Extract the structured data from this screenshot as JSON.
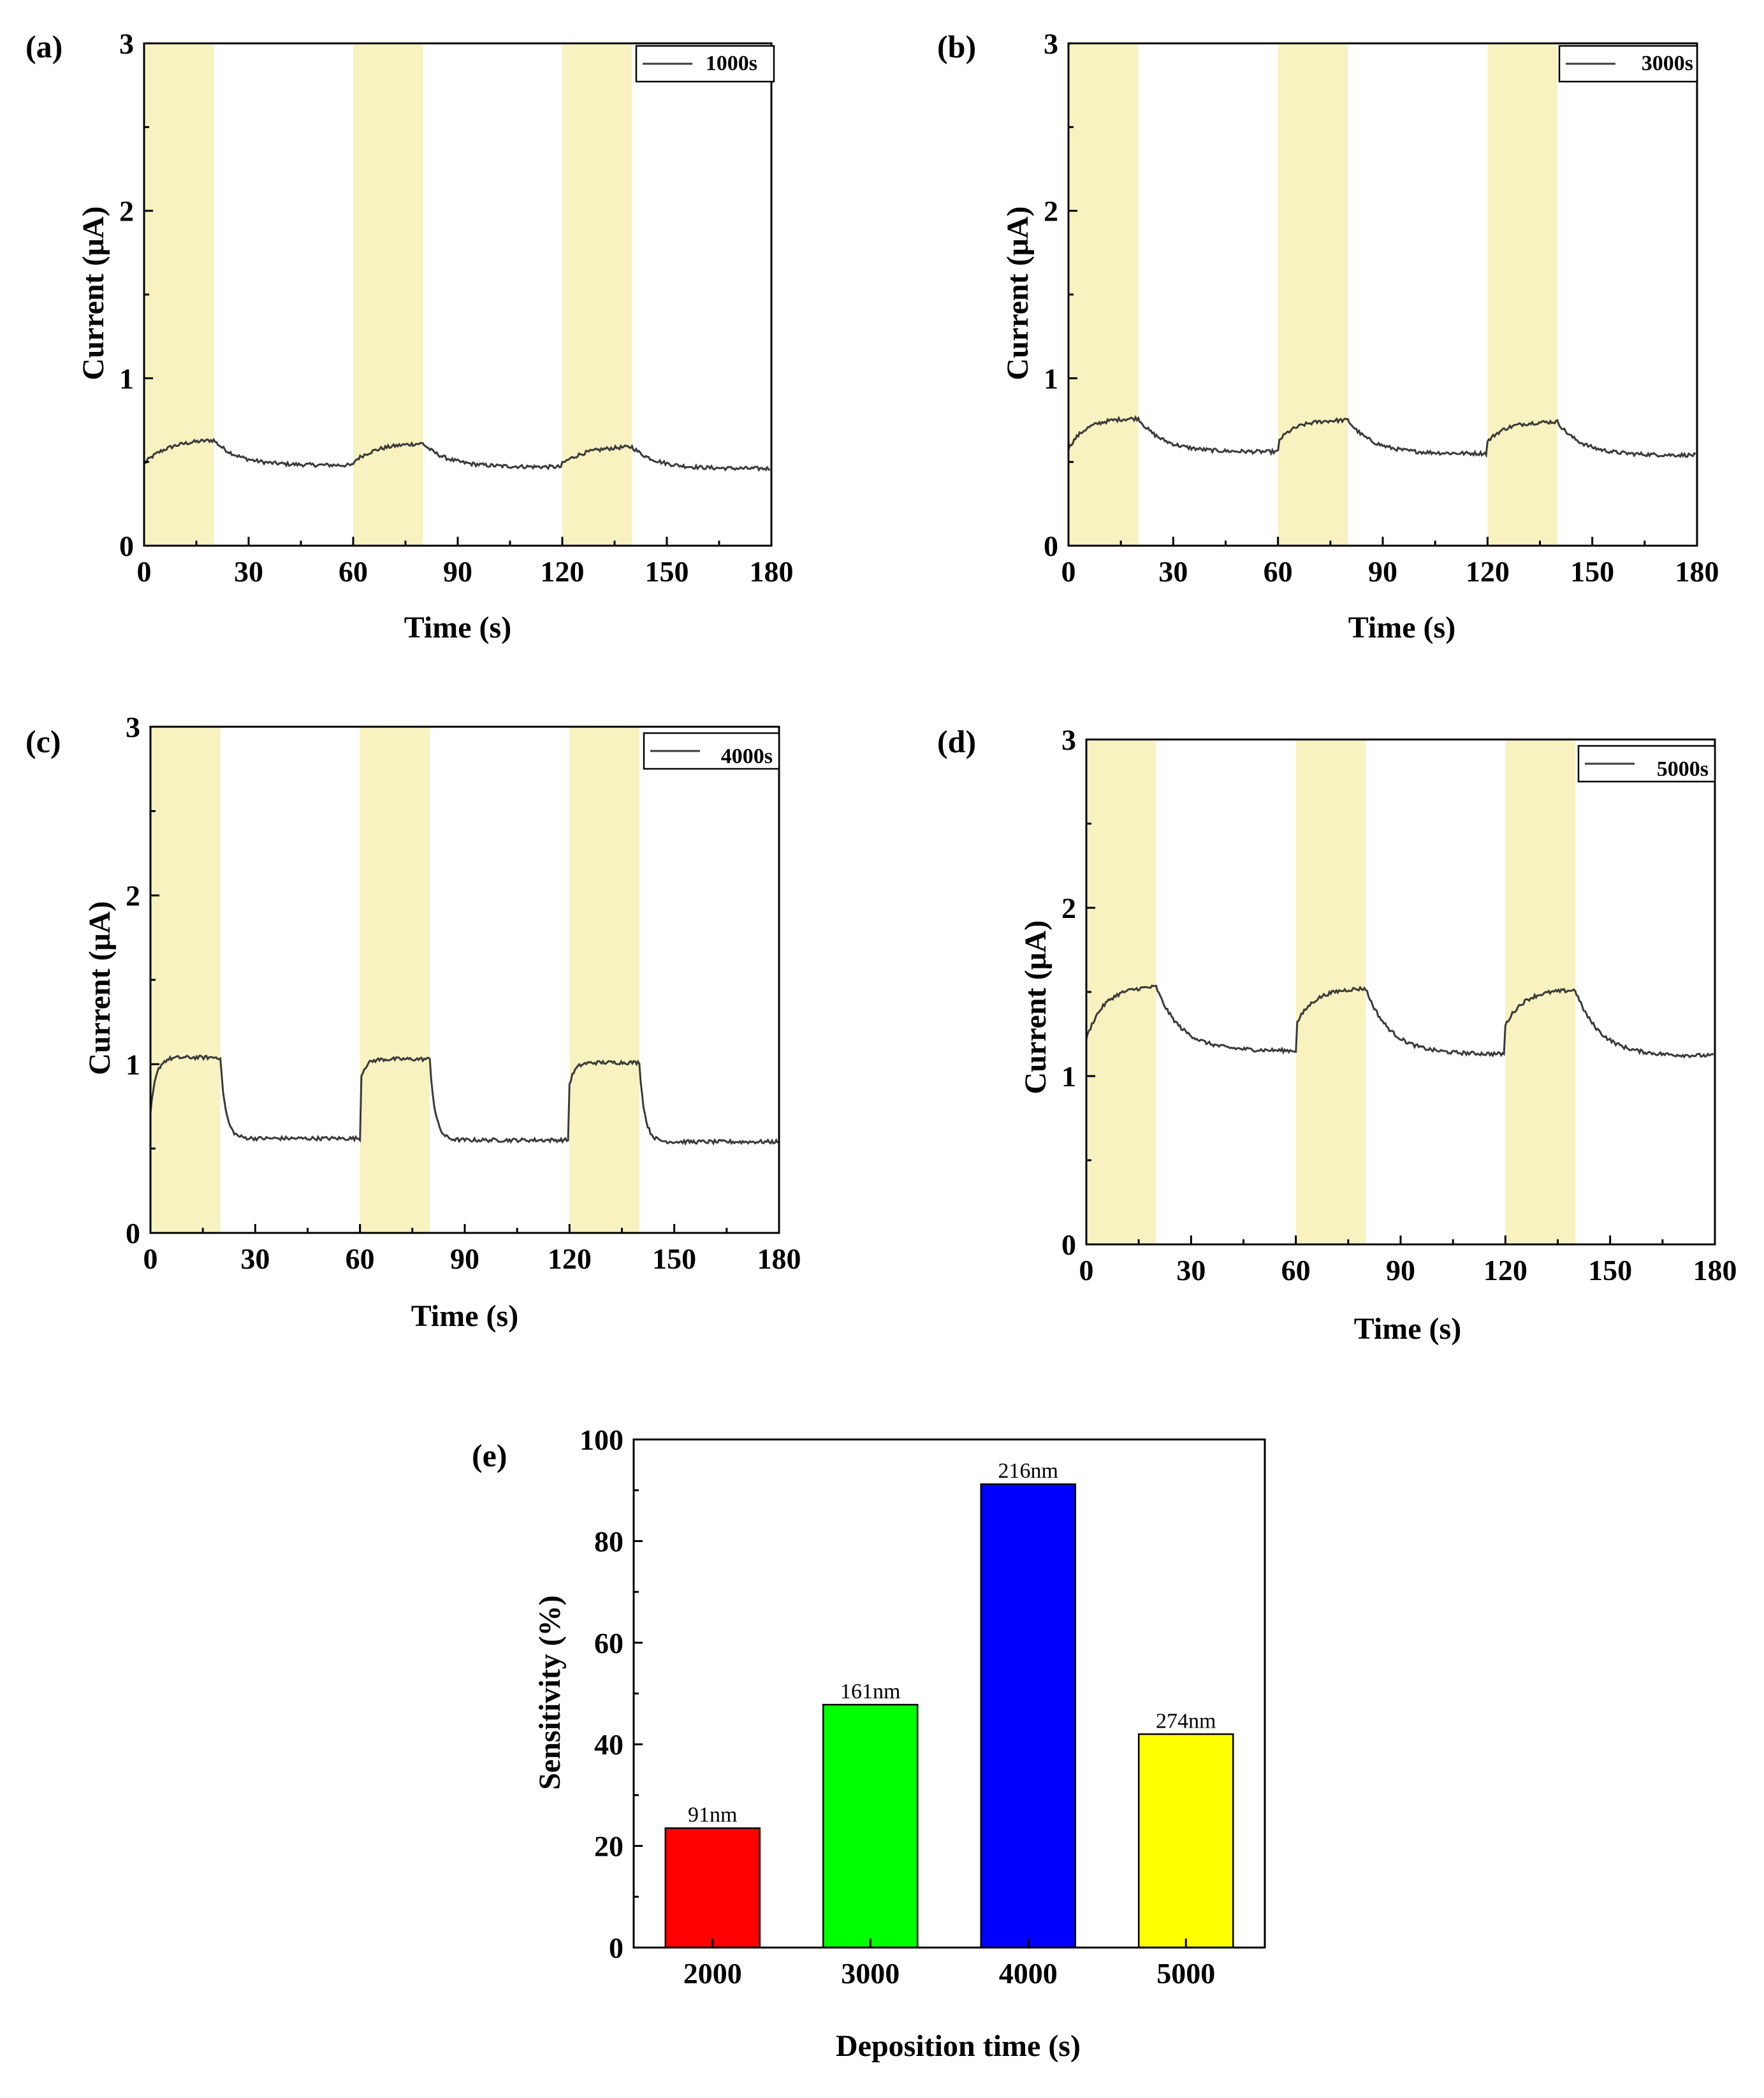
{
  "chart_data": [
    {
      "type": "line",
      "panel": "(a)",
      "legend": "1000s",
      "xlabel": "Time (s)",
      "ylabel": "Current (μA)",
      "xlim": [
        0,
        180
      ],
      "ylim": [
        0,
        3
      ],
      "xticks": [
        0,
        30,
        60,
        90,
        120,
        150,
        180
      ],
      "yticks": [
        0,
        1,
        2,
        3
      ],
      "light_on_intervals": [
        [
          0,
          20
        ],
        [
          60,
          80
        ],
        [
          120,
          140
        ]
      ],
      "series": [
        {
          "name": "1000s",
          "dark_level": [
            0.48,
            0.47,
            0.46
          ],
          "light_peak": [
            0.63,
            0.61,
            0.59
          ],
          "onset": [
            0.49,
            0.5,
            0.49
          ],
          "rise_tau": 7
        }
      ]
    },
    {
      "type": "line",
      "panel": "(b)",
      "legend": "3000s",
      "xlabel": "Time (s)",
      "ylabel": "Current (μA)",
      "xlim": [
        0,
        180
      ],
      "ylim": [
        0,
        3
      ],
      "xticks": [
        0,
        30,
        60,
        90,
        120,
        150,
        180
      ],
      "yticks": [
        0,
        1,
        2,
        3
      ],
      "light_on_intervals": [
        [
          0,
          20
        ],
        [
          60,
          80
        ],
        [
          120,
          140
        ]
      ],
      "series": [
        {
          "name": "3000s",
          "dark_level": [
            0.56,
            0.55,
            0.54
          ],
          "light_peak": [
            0.76,
            0.75,
            0.74
          ],
          "onset": [
            0.58,
            0.62,
            0.62
          ],
          "rise_tau": 5
        }
      ]
    },
    {
      "type": "line",
      "panel": "(c)",
      "legend": "4000s",
      "xlabel": "Time (s)",
      "ylabel": "Current (μA)",
      "xlim": [
        0,
        180
      ],
      "ylim": [
        0,
        3
      ],
      "xticks": [
        0,
        30,
        60,
        90,
        120,
        150,
        180
      ],
      "yticks": [
        0,
        1,
        2,
        3
      ],
      "light_on_intervals": [
        [
          0,
          20
        ],
        [
          60,
          80
        ],
        [
          120,
          140
        ]
      ],
      "series": [
        {
          "name": "4000s",
          "dark_level": [
            0.56,
            0.55,
            0.54
          ],
          "light_peak": [
            1.04,
            1.03,
            1.01
          ],
          "onset": [
            0.7,
            0.9,
            0.88
          ],
          "rise_tau": 1.5
        }
      ]
    },
    {
      "type": "line",
      "panel": "(d)",
      "legend": "5000s",
      "xlabel": "Time (s)",
      "ylabel": "Current (μA)",
      "xlim": [
        0,
        180
      ],
      "ylim": [
        0,
        3
      ],
      "xticks": [
        0,
        30,
        60,
        90,
        120,
        150,
        180
      ],
      "yticks": [
        0,
        1,
        2,
        3
      ],
      "light_on_intervals": [
        [
          0,
          20
        ],
        [
          60,
          80
        ],
        [
          120,
          140
        ]
      ],
      "series": [
        {
          "name": "5000s",
          "dark_level": [
            1.15,
            1.13,
            1.12
          ],
          "light_peak": [
            1.53,
            1.52,
            1.51
          ],
          "onset": [
            1.22,
            1.3,
            1.3
          ],
          "rise_tau": 5
        }
      ]
    },
    {
      "type": "bar",
      "panel": "(e)",
      "categories": [
        "2000",
        "3000",
        "4000",
        "5000"
      ],
      "values": [
        23.5,
        47.8,
        91.2,
        42.0
      ],
      "bar_labels": [
        "91nm",
        "161nm",
        "216nm",
        "274nm"
      ],
      "bar_colors": [
        "#ff0000",
        "#00ff00",
        "#0000ff",
        "#ffff00"
      ],
      "xlabel": "Deposition time (s)",
      "ylabel": "Sensitivity (%)",
      "ylim": [
        0,
        100
      ],
      "yticks": [
        0,
        20,
        40,
        60,
        80,
        100
      ]
    }
  ]
}
